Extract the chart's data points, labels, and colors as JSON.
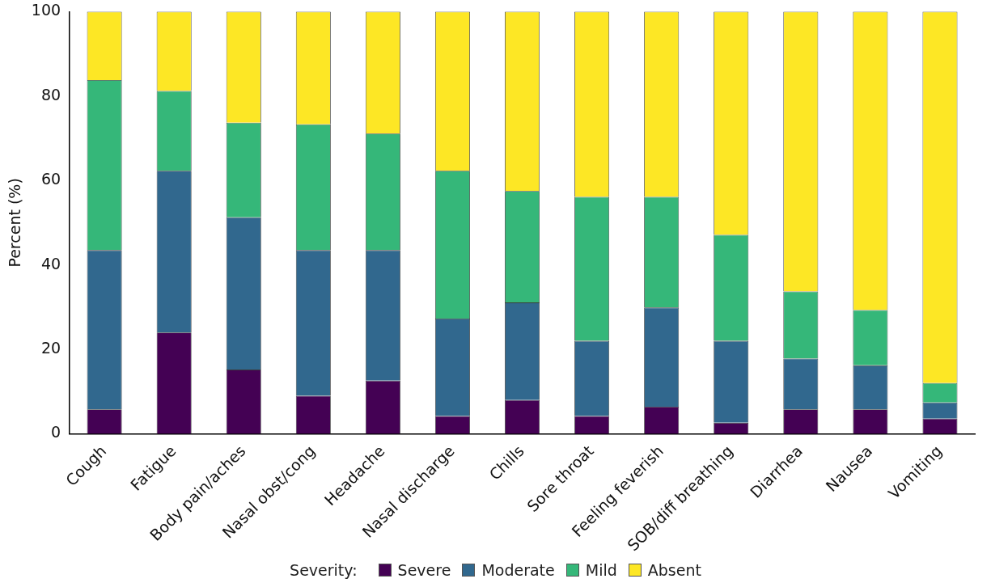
{
  "chart_data": {
    "type": "bar",
    "stacked": true,
    "ylabel": "Percent (%)",
    "legend_title": "Severity:",
    "legend": "bottom",
    "grid": false,
    "categories": [
      "Cough",
      "Fatigue",
      "Body pain/aches",
      "Nasal obst/cong",
      "Headache",
      "Nasal discharge",
      "Chills",
      "Sore throat",
      "Feeling feverish",
      "SOB/diff breathing",
      "Diarrhea",
      "Nausea",
      "Vomiting"
    ],
    "ylim": [
      0,
      100
    ],
    "yticks": [
      0,
      20,
      40,
      60,
      80,
      100
    ],
    "series": [
      {
        "name": "Severe",
        "color": "#440154",
        "values": [
          5.8,
          24.0,
          15.2,
          9.0,
          12.6,
          4.2,
          8.0,
          4.2,
          6.4,
          2.6,
          5.8,
          5.8,
          3.6
        ]
      },
      {
        "name": "Moderate",
        "color": "#31688e",
        "values": [
          37.7,
          38.3,
          36.1,
          34.5,
          30.9,
          23.1,
          23.1,
          17.8,
          23.5,
          19.4,
          12.0,
          10.4,
          3.8
        ]
      },
      {
        "name": "Mild",
        "color": "#35b779",
        "values": [
          40.3,
          18.9,
          22.4,
          29.8,
          27.6,
          35.0,
          26.4,
          34.1,
          26.2,
          25.1,
          15.9,
          13.1,
          4.6
        ]
      },
      {
        "name": "Absent",
        "color": "#fde725",
        "values": [
          16.2,
          18.8,
          26.3,
          26.7,
          28.9,
          37.7,
          42.5,
          43.9,
          43.9,
          52.9,
          66.3,
          70.7,
          88.0
        ]
      }
    ]
  }
}
